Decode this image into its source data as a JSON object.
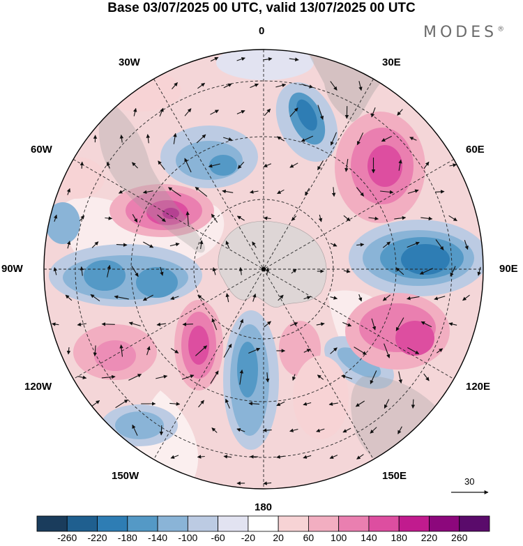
{
  "title": "Base 03/07/2025 00 UTC, valid 13/07/2025 00 UTC",
  "brand": "MODES",
  "brand_mark": "®",
  "longitude_labels": {
    "top": "0",
    "e30": "30E",
    "e60": "60E",
    "e90": "90E",
    "e120": "120E",
    "e150": "150E",
    "bottom": "180",
    "w150": "150W",
    "w120": "120W",
    "w90": "90W",
    "w60": "60W",
    "w30": "30W"
  },
  "vector_reference": "30",
  "colorbar": {
    "labels": [
      "-260",
      "-220",
      "-180",
      "-140",
      "-100",
      "-60",
      "-20",
      "20",
      "60",
      "100",
      "140",
      "180",
      "220",
      "260"
    ],
    "colors": [
      "#1a3c5c",
      "#1f5f8f",
      "#2e7db4",
      "#5499c6",
      "#8ab4d7",
      "#bccbe3",
      "#e2e3f1",
      "#ffffff",
      "#f7d3d5",
      "#f2aec1",
      "#ea7fb0",
      "#dd4ea0",
      "#c11b8e",
      "#8c077c",
      "#5a0b6b"
    ]
  },
  "anomaly_centers": [
    {
      "lon_label": "45E region",
      "sign": "positive",
      "strength": "strong"
    },
    {
      "lon_label": "90E region",
      "sign": "negative",
      "strength": "strong"
    },
    {
      "lon_label": "120E region",
      "sign": "positive",
      "strength": "strong"
    },
    {
      "lon_label": "70W region",
      "sign": "positive",
      "strength": "strong"
    },
    {
      "lon_label": "90W region",
      "sign": "negative",
      "strength": "moderate"
    },
    {
      "lon_label": "135W region",
      "sign": "positive",
      "strength": "strong"
    },
    {
      "lon_label": "170W region",
      "sign": "negative",
      "strength": "moderate"
    },
    {
      "lon_label": "15E region",
      "sign": "negative",
      "strength": "moderate"
    }
  ]
}
